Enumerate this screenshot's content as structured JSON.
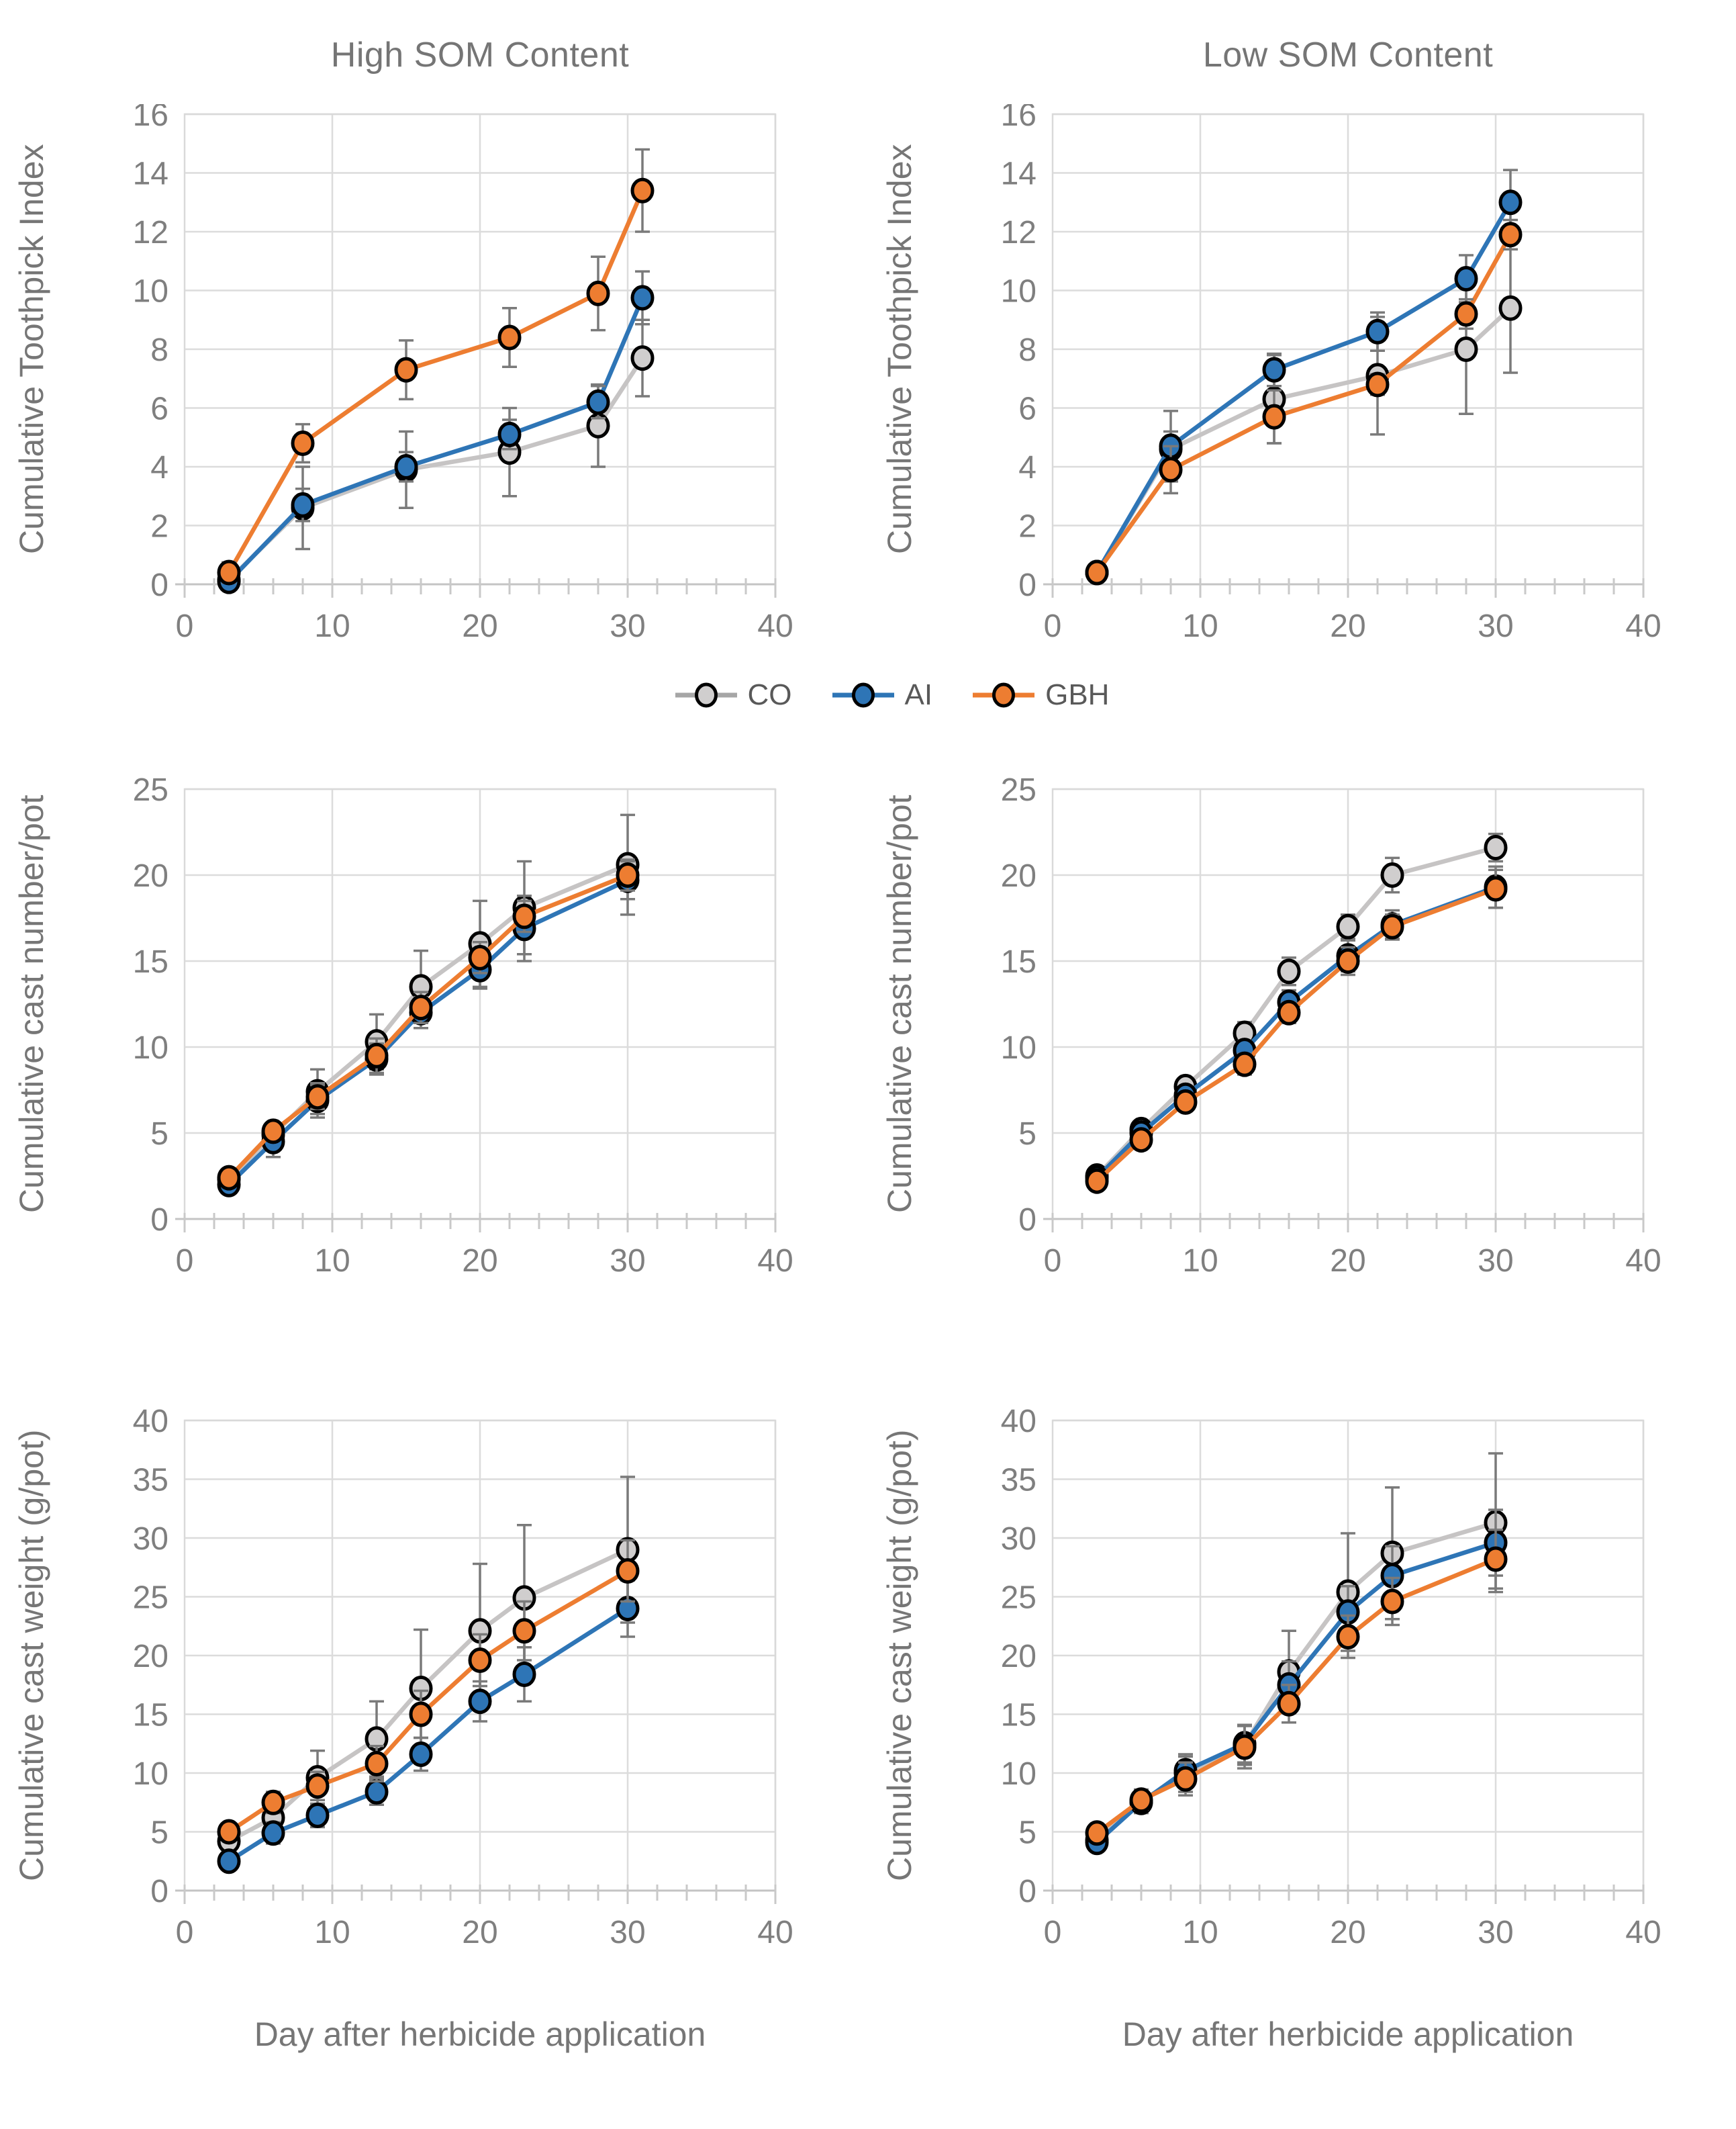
{
  "figure": {
    "legend": {
      "items": [
        {
          "label": "CO",
          "series": "CO"
        },
        {
          "label": "AI",
          "series": "AI"
        },
        {
          "label": "GBH",
          "series": "GBH"
        }
      ]
    },
    "palette": {
      "CO": {
        "line": "#c6c4c4",
        "legend_line": "#a6a6a6",
        "fill": "#d0cece"
      },
      "AI": {
        "line": "#2e75b6",
        "legend_line": "#2e75b6",
        "fill": "#2e75b6"
      },
      "GBH": {
        "line": "#ed7d31",
        "legend_line": "#ed7d31",
        "fill": "#ed7d31"
      },
      "marker_outline": "#000000",
      "error_bar": "#7a7a7a",
      "gridline": "#dcdcdc",
      "plot_border": "#d9d9d9",
      "axis_line": "#c4c4c4",
      "tick_mark": "#c9c9c9",
      "tick_text": "#7f7f7f",
      "label_text": "#767676"
    }
  },
  "chart_data": [
    {
      "type": "line",
      "title": "High SOM Content",
      "ylabel": "Cumulative Toothpick Index",
      "xlabel": "",
      "xlim": [
        0,
        40
      ],
      "ylim": [
        0,
        16
      ],
      "xtick": 10,
      "ytick": 2,
      "xminor": 2,
      "grid": true,
      "legend_position": "between-top-and-middle-rows",
      "x": [
        3,
        8,
        15,
        22,
        28,
        31
      ],
      "series": [
        {
          "name": "CO",
          "values": [
            0.15,
            2.6,
            3.9,
            4.5,
            5.4,
            7.7
          ],
          "errors": [
            0.25,
            1.4,
            1.3,
            1.5,
            1.4,
            1.3
          ]
        },
        {
          "name": "AI",
          "values": [
            0.1,
            2.7,
            4.0,
            5.1,
            6.2,
            9.75
          ],
          "errors": [
            0.2,
            0.55,
            0.5,
            0.5,
            0.55,
            0.9
          ]
        },
        {
          "name": "GBH",
          "values": [
            0.4,
            4.8,
            7.3,
            8.4,
            9.9,
            13.4
          ],
          "errors": [
            0.35,
            0.65,
            1.0,
            1.0,
            1.25,
            1.4
          ]
        }
      ]
    },
    {
      "type": "line",
      "title": "Low SOM Content",
      "ylabel": "Cumulative Toothpick Index",
      "xlabel": "",
      "xlim": [
        0,
        40
      ],
      "ylim": [
        0,
        16
      ],
      "xtick": 10,
      "ytick": 2,
      "xminor": 2,
      "grid": true,
      "x": [
        3,
        8,
        15,
        22,
        28,
        31
      ],
      "series": [
        {
          "name": "CO",
          "values": [
            0.4,
            4.6,
            6.3,
            7.1,
            8.0,
            9.4
          ],
          "errors": [
            0.15,
            0.6,
            1.5,
            2.0,
            2.2,
            2.2
          ]
        },
        {
          "name": "AI",
          "values": [
            0.4,
            4.7,
            7.3,
            8.6,
            10.4,
            13.0
          ],
          "errors": [
            0.15,
            1.2,
            0.55,
            0.65,
            0.8,
            1.1
          ]
        },
        {
          "name": "GBH",
          "values": [
            0.4,
            3.9,
            5.7,
            6.8,
            9.2,
            11.9
          ],
          "errors": [
            0.15,
            0.8,
            0.9,
            0.35,
            0.5,
            0.5
          ]
        }
      ]
    },
    {
      "type": "line",
      "title": "",
      "ylabel": "Cumulative cast number/pot",
      "xlabel": "",
      "xlim": [
        0,
        40
      ],
      "ylim": [
        0,
        25
      ],
      "xtick": 10,
      "ytick": 5,
      "xminor": 2,
      "grid": true,
      "x": [
        3,
        6,
        9,
        13,
        16,
        20,
        23,
        30
      ],
      "series": [
        {
          "name": "CO",
          "values": [
            2.3,
            4.9,
            7.4,
            10.3,
            13.5,
            16.0,
            18.1,
            20.6
          ],
          "errors": [
            0.5,
            0.7,
            1.3,
            1.6,
            2.1,
            2.5,
            2.7,
            2.9
          ]
        },
        {
          "name": "AI",
          "values": [
            2.0,
            4.5,
            6.9,
            9.3,
            12.0,
            14.5,
            16.9,
            19.7
          ],
          "errors": [
            0.4,
            0.9,
            1.0,
            0.9,
            0.9,
            1.1,
            1.9,
            1.1
          ]
        },
        {
          "name": "GBH",
          "values": [
            2.4,
            5.1,
            7.1,
            9.5,
            12.3,
            15.2,
            17.6,
            20.0
          ],
          "errors": [
            0.4,
            0.5,
            0.7,
            1.0,
            0.9,
            0.9,
            0.9,
            0.9
          ]
        }
      ]
    },
    {
      "type": "line",
      "title": "",
      "ylabel": "Cumulative cast number/pot",
      "xlabel": "",
      "xlim": [
        0,
        40
      ],
      "ylim": [
        0,
        25
      ],
      "xtick": 10,
      "ytick": 5,
      "xminor": 2,
      "grid": true,
      "x": [
        3,
        6,
        9,
        13,
        16,
        20,
        23,
        30
      ],
      "series": [
        {
          "name": "CO",
          "values": [
            2.5,
            5.2,
            7.7,
            10.8,
            14.4,
            17.0,
            20.0,
            21.6
          ],
          "errors": [
            0.3,
            0.35,
            0.5,
            0.65,
            0.8,
            0.7,
            1.0,
            0.8
          ]
        },
        {
          "name": "AI",
          "values": [
            2.4,
            5.0,
            7.2,
            9.8,
            12.6,
            15.3,
            17.1,
            19.3
          ],
          "errors": [
            0.3,
            0.35,
            0.45,
            0.55,
            0.7,
            0.9,
            0.85,
            1.2
          ]
        },
        {
          "name": "GBH",
          "values": [
            2.2,
            4.6,
            6.8,
            9.0,
            12.0,
            15.0,
            17.0,
            19.2
          ],
          "errors": [
            0.3,
            0.35,
            0.45,
            0.6,
            0.6,
            0.8,
            0.7,
            1.1
          ]
        }
      ]
    },
    {
      "type": "line",
      "title": "",
      "ylabel": "Cumulative cast weight (g/pot)",
      "xlabel": "Day after herbicide application",
      "xlim": [
        0,
        40
      ],
      "ylim": [
        0,
        40
      ],
      "xtick": 10,
      "ytick": 5,
      "xminor": 2,
      "grid": true,
      "x": [
        3,
        6,
        9,
        13,
        16,
        20,
        23,
        30
      ],
      "series": [
        {
          "name": "CO",
          "values": [
            4.2,
            6.2,
            9.6,
            12.9,
            17.2,
            22.1,
            24.9,
            29.0
          ],
          "errors": [
            0.8,
            1.2,
            2.3,
            3.2,
            5.0,
            5.7,
            6.2,
            6.2
          ]
        },
        {
          "name": "AI",
          "values": [
            2.5,
            4.9,
            6.4,
            8.4,
            11.6,
            16.1,
            18.4,
            24.0
          ],
          "errors": [
            0.5,
            0.9,
            1.0,
            1.1,
            1.4,
            1.7,
            2.3,
            2.4
          ]
        },
        {
          "name": "GBH",
          "values": [
            5.0,
            7.5,
            8.9,
            10.8,
            15.0,
            19.6,
            22.1,
            27.2
          ],
          "errors": [
            0.7,
            0.9,
            1.2,
            1.5,
            2.0,
            2.2,
            2.5,
            2.6
          ]
        }
      ]
    },
    {
      "type": "line",
      "title": "",
      "ylabel": "Cumulative cast weight (g/pot)",
      "xlabel": "Day after herbicide application",
      "xlim": [
        0,
        40
      ],
      "ylim": [
        0,
        40
      ],
      "xtick": 10,
      "ytick": 5,
      "xminor": 2,
      "grid": true,
      "x": [
        3,
        6,
        9,
        13,
        16,
        20,
        23,
        30
      ],
      "series": [
        {
          "name": "CO",
          "values": [
            4.3,
            7.6,
            10.0,
            12.4,
            18.6,
            25.4,
            28.7,
            31.3
          ],
          "errors": [
            0.6,
            1.0,
            1.6,
            1.7,
            3.5,
            5.0,
            5.6,
            5.9
          ]
        },
        {
          "name": "AI",
          "values": [
            4.1,
            7.5,
            10.2,
            12.5,
            17.5,
            23.7,
            26.8,
            29.6
          ],
          "errors": [
            0.5,
            0.9,
            1.2,
            1.6,
            2.0,
            2.2,
            2.5,
            2.8
          ]
        },
        {
          "name": "GBH",
          "values": [
            4.9,
            7.7,
            9.5,
            12.2,
            15.9,
            21.6,
            24.6,
            28.2
          ],
          "errors": [
            0.5,
            0.8,
            1.4,
            1.8,
            1.6,
            1.8,
            2.0,
            2.5
          ]
        }
      ]
    }
  ]
}
